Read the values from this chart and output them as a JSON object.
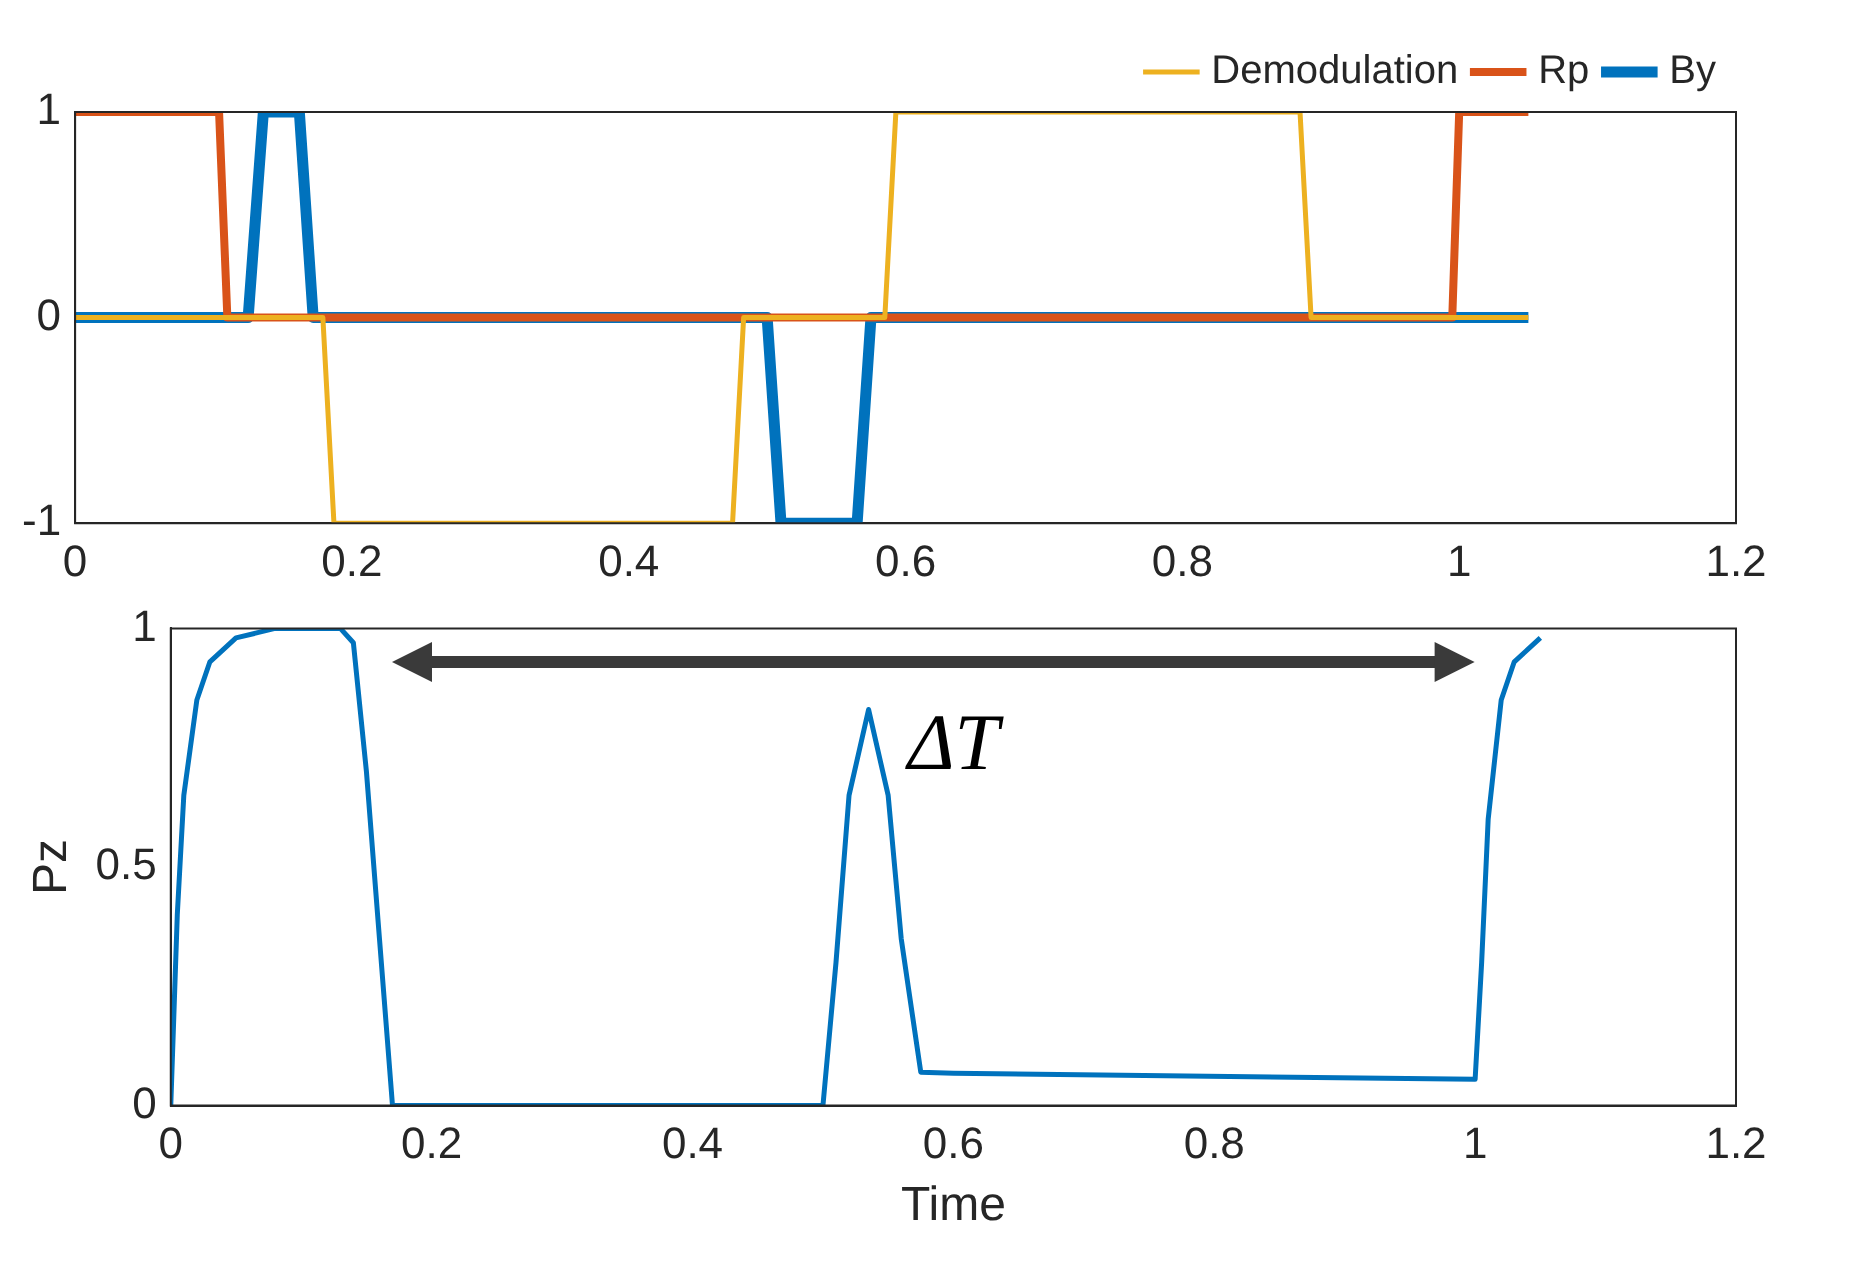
{
  "chart_data": [
    {
      "type": "line",
      "xlim": [
        0,
        1.2
      ],
      "xticks": [
        0,
        0.2,
        0.4,
        0.6,
        0.8,
        1,
        1.2
      ],
      "ylim": [
        -1,
        1
      ],
      "yticks": [
        -1,
        0,
        1
      ],
      "grid": false,
      "legend": "top right",
      "marker": "none",
      "line_style": "solid",
      "series": [
        {
          "name": "By",
          "color": "#0072bd",
          "x": [
            0,
            0.125,
            0.136,
            0.162,
            0.172,
            0.5,
            0.51,
            0.565,
            0.575,
            1.05
          ],
          "values": [
            0,
            0,
            1,
            1,
            0,
            0,
            -1,
            -1,
            0,
            0
          ]
        },
        {
          "name": "Rp",
          "color": "#d95319",
          "x": [
            0,
            0.104,
            0.11,
            0.995,
            1.0,
            1.05
          ],
          "values": [
            1,
            1,
            0,
            0,
            1,
            1
          ]
        },
        {
          "name": "Demodulation",
          "color": "#edb120",
          "x": [
            0,
            0.179,
            0.187,
            0.475,
            0.483,
            0.585,
            0.593,
            0.885,
            0.893,
            1.05
          ],
          "values": [
            0,
            0,
            -1,
            -1,
            0,
            0,
            1,
            1,
            0,
            0
          ]
        }
      ]
    },
    {
      "type": "line",
      "xlabel": "Time",
      "ylabel": "Pz",
      "xlim": [
        0,
        1.2
      ],
      "xticks": [
        0,
        0.2,
        0.4,
        0.6,
        0.8,
        1,
        1.2
      ],
      "ylim": [
        0,
        1
      ],
      "yticks": [
        0,
        0.5,
        1
      ],
      "grid": false,
      "marker": "none",
      "line_style": "solid",
      "annotations": [
        "ΔT"
      ],
      "series": [
        {
          "color": "#0072bd",
          "x": [
            0,
            0.005,
            0.01,
            0.02,
            0.03,
            0.05,
            0.08,
            0.13,
            0.14,
            0.15,
            0.16,
            0.17,
            0.5,
            0.51,
            0.52,
            0.535,
            0.55,
            0.56,
            0.575,
            0.6,
            1.0,
            1.005,
            1.01,
            1.02,
            1.03,
            1.05
          ],
          "values": [
            0,
            0.4,
            0.65,
            0.85,
            0.93,
            0.98,
            1,
            1,
            0.97,
            0.7,
            0.35,
            0,
            0,
            0.3,
            0.65,
            0.83,
            0.65,
            0.35,
            0.07,
            0.068,
            0.055,
            0.3,
            0.6,
            0.85,
            0.93,
            0.98
          ]
        }
      ]
    }
  ]
}
